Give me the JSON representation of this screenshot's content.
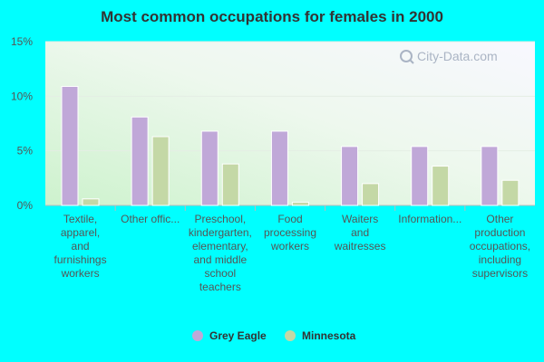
{
  "chart_data": {
    "type": "bar",
    "title": "Most common occupations for females in 2000",
    "categories": [
      [
        "Textile,",
        "apparel,",
        "and",
        "furnishings",
        "workers"
      ],
      [
        "Other offic..."
      ],
      [
        "Preschool,",
        "kindergarten,",
        "elementary,",
        "and middle",
        "school",
        "teachers"
      ],
      [
        "Food",
        "processing",
        "workers"
      ],
      [
        "Waiters",
        "and",
        "waitresses"
      ],
      [
        "Information..."
      ],
      [
        "Other",
        "production",
        "occupations,",
        "including",
        "supervisors"
      ]
    ],
    "series": [
      {
        "name": "Grey Eagle",
        "color": "#c0a8d8",
        "values": [
          10.9,
          8.1,
          6.8,
          6.8,
          5.4,
          5.4,
          5.4
        ]
      },
      {
        "name": "Minnesota",
        "color": "#c4d8a6",
        "values": [
          0.6,
          6.3,
          3.8,
          0.3,
          2.0,
          3.6,
          2.3
        ]
      }
    ],
    "y_ticks": [
      "0%",
      "5%",
      "10%",
      "15%"
    ],
    "ylim": [
      0,
      15
    ],
    "grid": true,
    "legend_position": "bottom"
  },
  "watermark": "City-Data.com"
}
